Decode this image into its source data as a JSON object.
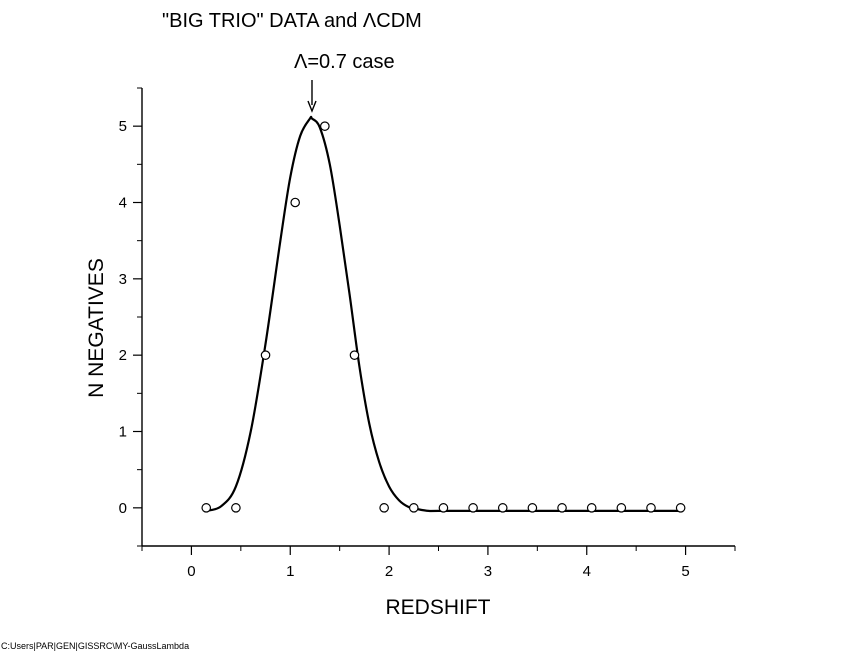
{
  "chart_data": {
    "type": "scatter",
    "title": "\"BIG TRIO\" DATA and ΛCDM",
    "annotation": "Λ=0.7 case",
    "xlabel": "REDSHIFT",
    "ylabel": "N NEGATIVES",
    "xlim": [
      -0.5,
      5.5
    ],
    "ylim": [
      -0.5,
      5.5
    ],
    "xticks": [
      0,
      1,
      2,
      3,
      4,
      5
    ],
    "yticks": [
      0,
      1,
      2,
      3,
      4,
      5
    ],
    "x_tick_labels": [
      "0",
      "1",
      "2",
      "3",
      "4",
      "5"
    ],
    "y_tick_labels": [
      "0",
      "1",
      "2",
      "3",
      "4",
      "5"
    ],
    "grid": false,
    "points": {
      "x": [
        0.15,
        0.45,
        0.75,
        1.05,
        1.35,
        1.65,
        1.95,
        2.25,
        2.55,
        2.85,
        3.15,
        3.45,
        3.75,
        4.05,
        4.35,
        4.65,
        4.95
      ],
      "y": [
        0,
        0,
        2,
        4,
        5,
        2,
        0,
        0,
        0,
        0,
        0,
        0,
        0,
        0,
        0,
        0,
        0
      ]
    },
    "curve": {
      "x": [
        0.15,
        0.3,
        0.45,
        0.6,
        0.75,
        0.9,
        1.0,
        1.1,
        1.2,
        1.22,
        1.3,
        1.4,
        1.5,
        1.6,
        1.7,
        1.8,
        1.9,
        2.0,
        2.1,
        2.2,
        2.3,
        2.4,
        2.5,
        3.0,
        4.0,
        4.95
      ],
      "y": [
        -0.04,
        0.02,
        0.28,
        1.0,
        2.15,
        3.5,
        4.33,
        4.87,
        5.1,
        5.1,
        4.98,
        4.5,
        3.7,
        2.8,
        1.85,
        1.1,
        0.6,
        0.28,
        0.1,
        0.01,
        -0.02,
        -0.04,
        -0.04,
        -0.04,
        -0.04,
        -0.04
      ]
    },
    "arrow_target_x": 1.22,
    "footer": "C:Users|PAR|GEN|GISSRC\\MY-GaussLambda"
  }
}
